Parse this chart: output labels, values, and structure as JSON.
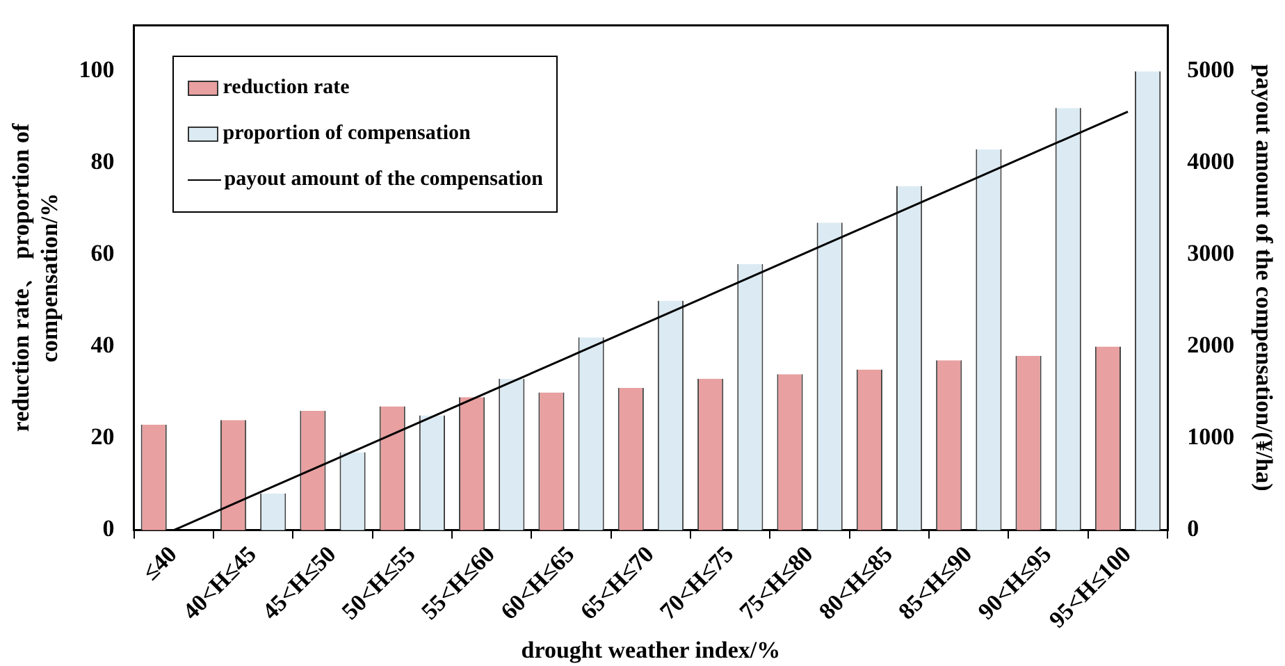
{
  "chart_data": {
    "type": "bar",
    "xlabel": "drought weather index/%",
    "ylabel": "reduction rate、 proportion of compensation/%",
    "y2label": "payout amount of the compensation/(¥/ha)",
    "categories": [
      "≤40",
      "40<H≤45",
      "45<H≤50",
      "50<H≤55",
      "55<H≤60",
      "60<H≤65",
      "65<H≤70",
      "70<H≤75",
      "75<H≤80",
      "80<H≤85",
      "85<H≤90",
      "90<H≤95",
      "95<H≤100"
    ],
    "series": [
      {
        "name": "reduction rate",
        "color": "#e8a0a0",
        "values": [
          23,
          24,
          26,
          27,
          29,
          30,
          31,
          33,
          34,
          35,
          37,
          38,
          40
        ]
      },
      {
        "name": "proportion of compensation",
        "color": "#dcebf3",
        "values": [
          0,
          8,
          17,
          25,
          33,
          42,
          50,
          58,
          67,
          75,
          83,
          92,
          100
        ]
      },
      {
        "name": "payout amount of the compensation",
        "type": "line",
        "axis": "y2",
        "color": "#000000",
        "values": [
          0,
          380,
          760,
          1140,
          1520,
          1900,
          2280,
          2660,
          3040,
          3420,
          3800,
          4180,
          4560
        ]
      }
    ],
    "ylim": [
      0,
      110
    ],
    "yticks": [
      0,
      20,
      40,
      60,
      80,
      100
    ],
    "y2lim": [
      0,
      5500
    ],
    "y2ticks": [
      0,
      1000,
      2000,
      3000,
      4000,
      5000
    ],
    "legend": "top left",
    "grid": false,
    "marker": "none",
    "line_style": "solid"
  }
}
